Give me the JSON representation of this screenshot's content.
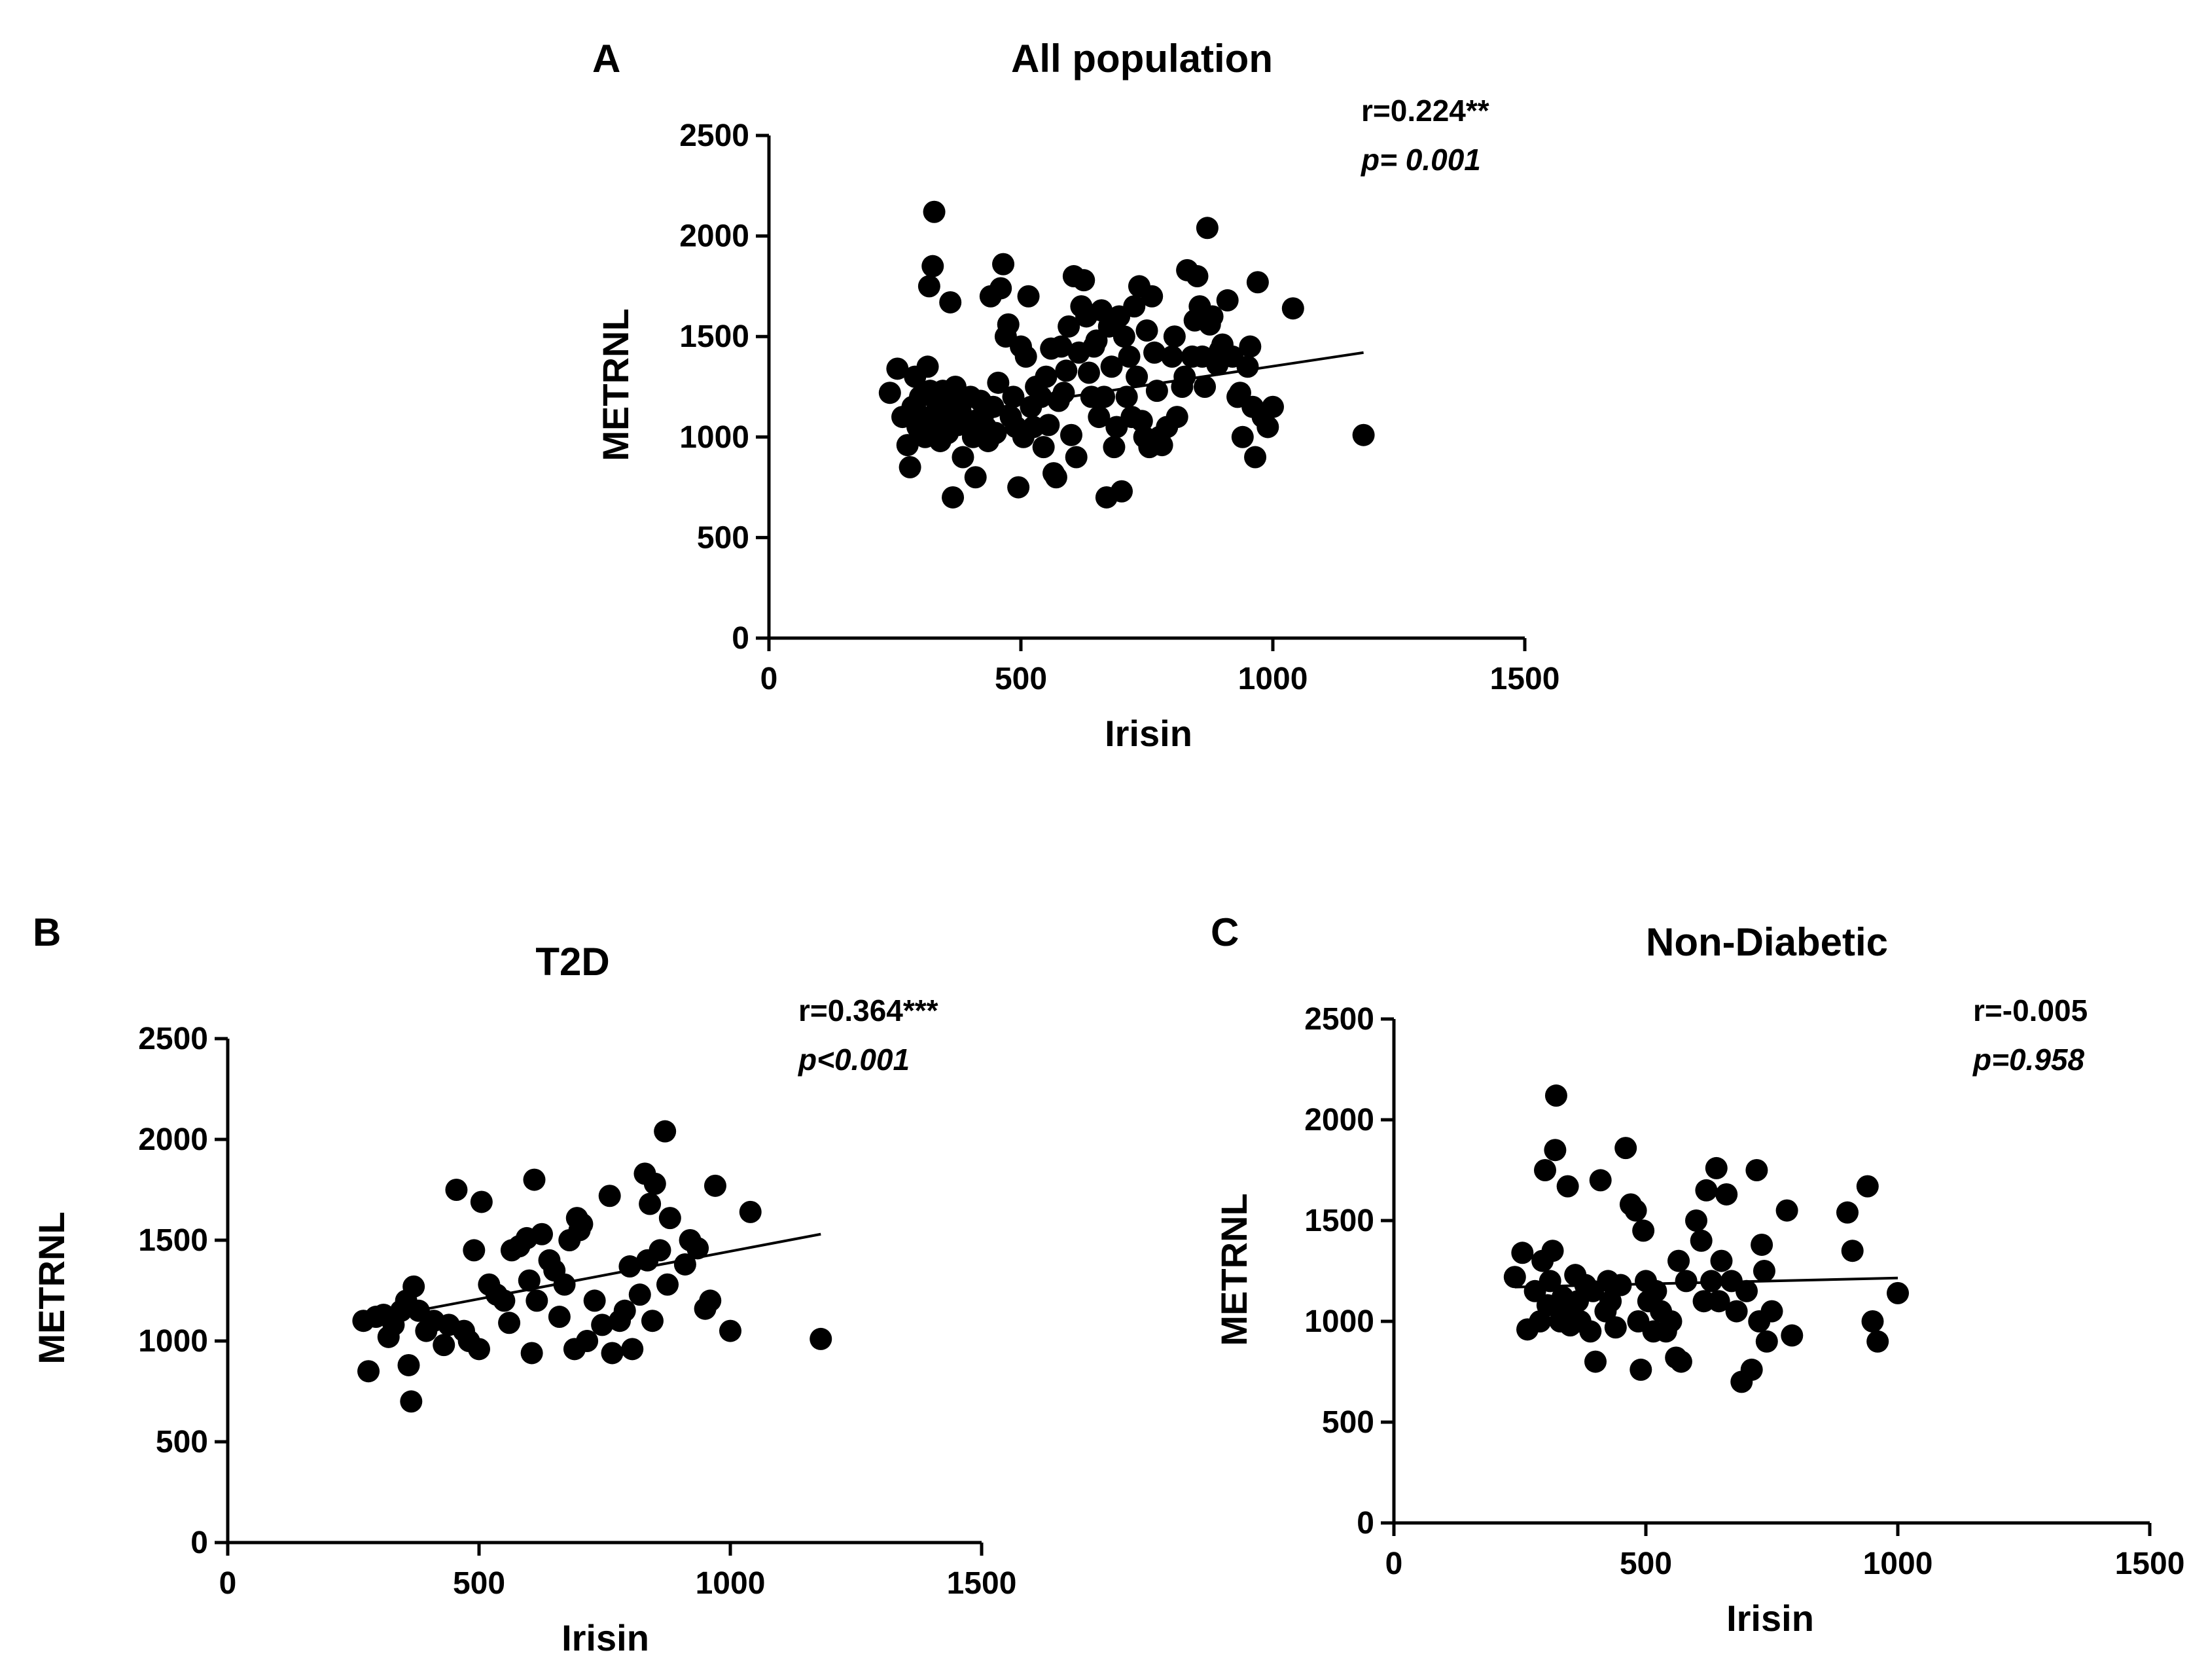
{
  "chart_data": [
    {
      "id": "A",
      "type": "scatter",
      "title": "All population",
      "xlabel": "Irisin",
      "ylabel": "METRNL",
      "xlim": [
        0,
        1500
      ],
      "ylim": [
        0,
        2500
      ],
      "xticks": [
        0,
        500,
        1000,
        1500
      ],
      "yticks": [
        0,
        500,
        1000,
        1500,
        2000,
        2500
      ],
      "stats": {
        "r": "r=0.224**",
        "p": "p= 0.001"
      },
      "trendline": [
        [
          330,
          1100
        ],
        [
          1180,
          1420
        ]
      ],
      "points": [
        [
          240,
          1220
        ],
        [
          255,
          1340
        ],
        [
          265,
          1100
        ],
        [
          275,
          960
        ],
        [
          280,
          850
        ],
        [
          285,
          1150
        ],
        [
          290,
          1300
        ],
        [
          295,
          1050
        ],
        [
          300,
          1200
        ],
        [
          305,
          1100
        ],
        [
          310,
          1000
        ],
        [
          315,
          1350
        ],
        [
          318,
          1750
        ],
        [
          320,
          1230
        ],
        [
          325,
          1850
        ],
        [
          328,
          2120
        ],
        [
          330,
          1060
        ],
        [
          335,
          1150
        ],
        [
          340,
          980
        ],
        [
          345,
          1230
        ],
        [
          350,
          1100
        ],
        [
          355,
          1020
        ],
        [
          360,
          1670
        ],
        [
          362,
          1180
        ],
        [
          365,
          700
        ],
        [
          370,
          1250
        ],
        [
          375,
          1060
        ],
        [
          380,
          1130
        ],
        [
          385,
          900
        ],
        [
          390,
          1080
        ],
        [
          400,
          1200
        ],
        [
          405,
          1000
        ],
        [
          410,
          800
        ],
        [
          420,
          1180
        ],
        [
          425,
          1110
        ],
        [
          430,
          1050
        ],
        [
          435,
          980
        ],
        [
          440,
          1700
        ],
        [
          445,
          1150
        ],
        [
          450,
          1020
        ],
        [
          455,
          1270
        ],
        [
          460,
          1740
        ],
        [
          465,
          1860
        ],
        [
          470,
          1500
        ],
        [
          475,
          1560
        ],
        [
          480,
          1100
        ],
        [
          485,
          1200
        ],
        [
          490,
          1050
        ],
        [
          495,
          750
        ],
        [
          500,
          1450
        ],
        [
          505,
          1000
        ],
        [
          510,
          1400
        ],
        [
          515,
          1700
        ],
        [
          520,
          1150
        ],
        [
          525,
          1050
        ],
        [
          530,
          1250
        ],
        [
          540,
          1200
        ],
        [
          545,
          950
        ],
        [
          550,
          1300
        ],
        [
          555,
          1060
        ],
        [
          560,
          1440
        ],
        [
          565,
          820
        ],
        [
          570,
          800
        ],
        [
          575,
          1180
        ],
        [
          580,
          1450
        ],
        [
          585,
          1220
        ],
        [
          590,
          1330
        ],
        [
          595,
          1550
        ],
        [
          600,
          1010
        ],
        [
          605,
          1800
        ],
        [
          610,
          900
        ],
        [
          615,
          1420
        ],
        [
          620,
          1650
        ],
        [
          625,
          1780
        ],
        [
          630,
          1600
        ],
        [
          635,
          1320
        ],
        [
          640,
          1200
        ],
        [
          645,
          1450
        ],
        [
          650,
          1480
        ],
        [
          655,
          1100
        ],
        [
          660,
          1630
        ],
        [
          665,
          1200
        ],
        [
          670,
          700
        ],
        [
          675,
          1550
        ],
        [
          680,
          1350
        ],
        [
          685,
          950
        ],
        [
          690,
          1050
        ],
        [
          695,
          1600
        ],
        [
          700,
          730
        ],
        [
          705,
          1500
        ],
        [
          710,
          1200
        ],
        [
          715,
          1400
        ],
        [
          720,
          1100
        ],
        [
          725,
          1650
        ],
        [
          730,
          1300
        ],
        [
          735,
          1750
        ],
        [
          740,
          1080
        ],
        [
          745,
          1000
        ],
        [
          750,
          1530
        ],
        [
          755,
          950
        ],
        [
          760,
          1700
        ],
        [
          765,
          1420
        ],
        [
          770,
          1230
        ],
        [
          775,
          1000
        ],
        [
          780,
          960
        ],
        [
          790,
          1050
        ],
        [
          800,
          1400
        ],
        [
          805,
          1500
        ],
        [
          810,
          1100
        ],
        [
          820,
          1250
        ],
        [
          825,
          1300
        ],
        [
          830,
          1830
        ],
        [
          840,
          1400
        ],
        [
          845,
          1580
        ],
        [
          850,
          1800
        ],
        [
          855,
          1650
        ],
        [
          860,
          1400
        ],
        [
          865,
          1250
        ],
        [
          870,
          2040
        ],
        [
          875,
          1560
        ],
        [
          880,
          1600
        ],
        [
          890,
          1360
        ],
        [
          895,
          1430
        ],
        [
          900,
          1460
        ],
        [
          910,
          1680
        ],
        [
          920,
          1400
        ],
        [
          930,
          1200
        ],
        [
          935,
          1220
        ],
        [
          940,
          1000
        ],
        [
          950,
          1350
        ],
        [
          955,
          1450
        ],
        [
          960,
          1150
        ],
        [
          965,
          900
        ],
        [
          970,
          1770
        ],
        [
          980,
          1100
        ],
        [
          990,
          1050
        ],
        [
          1000,
          1150
        ],
        [
          1040,
          1640
        ],
        [
          1180,
          1010
        ]
      ]
    },
    {
      "id": "B",
      "type": "scatter",
      "title": "T2D",
      "xlabel": "Irisin",
      "ylabel": "METRNL",
      "xlim": [
        0,
        1500
      ],
      "ylim": [
        0,
        2500
      ],
      "xticks": [
        0,
        500,
        1000,
        1500
      ],
      "yticks": [
        0,
        500,
        1000,
        1500,
        2000,
        2500
      ],
      "stats": {
        "r": "r=0.364***",
        "p": "p<0.001"
      },
      "trendline": [
        [
          270,
          1100
        ],
        [
          1180,
          1530
        ]
      ],
      "points": [
        [
          270,
          1100
        ],
        [
          280,
          850
        ],
        [
          295,
          1120
        ],
        [
          310,
          1130
        ],
        [
          320,
          1020
        ],
        [
          330,
          1080
        ],
        [
          345,
          1150
        ],
        [
          355,
          1200
        ],
        [
          360,
          880
        ],
        [
          365,
          700
        ],
        [
          370,
          1270
        ],
        [
          380,
          1150
        ],
        [
          395,
          1050
        ],
        [
          410,
          1100
        ],
        [
          430,
          980
        ],
        [
          440,
          1080
        ],
        [
          455,
          1750
        ],
        [
          470,
          1050
        ],
        [
          480,
          1000
        ],
        [
          490,
          1450
        ],
        [
          500,
          960
        ],
        [
          505,
          1690
        ],
        [
          520,
          1280
        ],
        [
          535,
          1230
        ],
        [
          550,
          1200
        ],
        [
          560,
          1090
        ],
        [
          565,
          1450
        ],
        [
          580,
          1470
        ],
        [
          595,
          1510
        ],
        [
          600,
          1300
        ],
        [
          605,
          940
        ],
        [
          610,
          1800
        ],
        [
          615,
          1200
        ],
        [
          625,
          1530
        ],
        [
          640,
          1400
        ],
        [
          650,
          1350
        ],
        [
          660,
          1120
        ],
        [
          670,
          1280
        ],
        [
          680,
          1500
        ],
        [
          690,
          960
        ],
        [
          695,
          1610
        ],
        [
          700,
          1550
        ],
        [
          705,
          1580
        ],
        [
          715,
          1000
        ],
        [
          730,
          1200
        ],
        [
          745,
          1080
        ],
        [
          760,
          1720
        ],
        [
          765,
          940
        ],
        [
          780,
          1100
        ],
        [
          790,
          1150
        ],
        [
          800,
          1370
        ],
        [
          805,
          960
        ],
        [
          820,
          1230
        ],
        [
          830,
          1830
        ],
        [
          835,
          1400
        ],
        [
          840,
          1680
        ],
        [
          845,
          1100
        ],
        [
          850,
          1780
        ],
        [
          860,
          1450
        ],
        [
          870,
          2040
        ],
        [
          875,
          1280
        ],
        [
          880,
          1610
        ],
        [
          910,
          1380
        ],
        [
          920,
          1500
        ],
        [
          935,
          1460
        ],
        [
          950,
          1160
        ],
        [
          960,
          1200
        ],
        [
          970,
          1770
        ],
        [
          1000,
          1050
        ],
        [
          1040,
          1640
        ],
        [
          1180,
          1010
        ]
      ]
    },
    {
      "id": "C",
      "type": "scatter",
      "title": "Non-Diabetic",
      "xlabel": "Irisin",
      "ylabel": "METRNL",
      "xlim": [
        0,
        1500
      ],
      "ylim": [
        0,
        2500
      ],
      "xticks": [
        0,
        500,
        1000,
        1500
      ],
      "yticks": [
        0,
        500,
        1000,
        1500,
        2000,
        2500
      ],
      "stats": {
        "r": "r=-0.005",
        "p": "p=0.958"
      },
      "trendline": [
        [
          240,
          1170
        ],
        [
          1000,
          1215
        ]
      ],
      "points": [
        [
          240,
          1220
        ],
        [
          255,
          1340
        ],
        [
          265,
          960
        ],
        [
          280,
          1150
        ],
        [
          290,
          1000
        ],
        [
          295,
          1300
        ],
        [
          300,
          1750
        ],
        [
          305,
          1080
        ],
        [
          310,
          1200
        ],
        [
          315,
          1350
        ],
        [
          320,
          1850
        ],
        [
          322,
          2120
        ],
        [
          330,
          1000
        ],
        [
          335,
          1120
        ],
        [
          340,
          1050
        ],
        [
          345,
          1670
        ],
        [
          350,
          980
        ],
        [
          360,
          1230
        ],
        [
          365,
          1100
        ],
        [
          370,
          1000
        ],
        [
          380,
          1180
        ],
        [
          390,
          950
        ],
        [
          395,
          1150
        ],
        [
          400,
          800
        ],
        [
          410,
          1700
        ],
        [
          420,
          1050
        ],
        [
          425,
          1200
        ],
        [
          430,
          1100
        ],
        [
          440,
          970
        ],
        [
          450,
          1180
        ],
        [
          460,
          1860
        ],
        [
          470,
          1580
        ],
        [
          480,
          1550
        ],
        [
          485,
          1000
        ],
        [
          490,
          760
        ],
        [
          495,
          1450
        ],
        [
          500,
          1200
        ],
        [
          505,
          1100
        ],
        [
          515,
          950
        ],
        [
          520,
          1150
        ],
        [
          530,
          1050
        ],
        [
          540,
          950
        ],
        [
          550,
          1000
        ],
        [
          560,
          820
        ],
        [
          565,
          1300
        ],
        [
          570,
          800
        ],
        [
          580,
          1200
        ],
        [
          600,
          1500
        ],
        [
          610,
          1400
        ],
        [
          615,
          1100
        ],
        [
          620,
          1650
        ],
        [
          630,
          1200
        ],
        [
          640,
          1760
        ],
        [
          645,
          1100
        ],
        [
          650,
          1300
        ],
        [
          660,
          1630
        ],
        [
          670,
          1200
        ],
        [
          680,
          1050
        ],
        [
          690,
          700
        ],
        [
          700,
          1150
        ],
        [
          710,
          760
        ],
        [
          720,
          1750
        ],
        [
          725,
          1000
        ],
        [
          730,
          1380
        ],
        [
          735,
          1250
        ],
        [
          740,
          900
        ],
        [
          750,
          1050
        ],
        [
          780,
          1550
        ],
        [
          790,
          930
        ],
        [
          900,
          1540
        ],
        [
          910,
          1350
        ],
        [
          940,
          1670
        ],
        [
          950,
          1000
        ],
        [
          960,
          900
        ],
        [
          1000,
          1140
        ]
      ]
    }
  ]
}
